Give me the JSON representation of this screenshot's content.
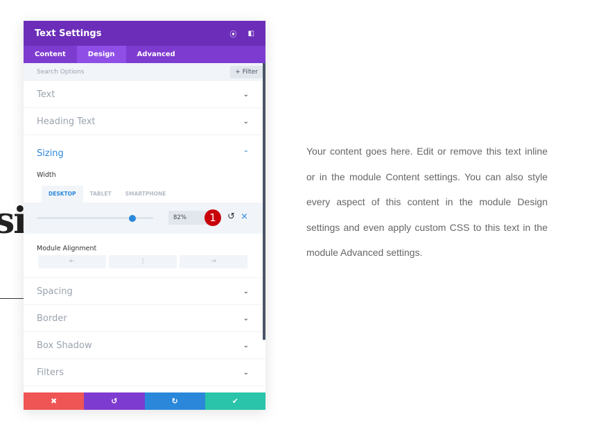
{
  "background": {
    "word": "sig",
    "paragraph": "Your content goes here. Edit or remove this text inline or in the module Content settings. You can also style every aspect of this content in the module Design settings and even apply custom CSS to this text in the module Advanced settings."
  },
  "panel": {
    "title": "Text Settings",
    "tabs": [
      "Content",
      "Design",
      "Advanced"
    ],
    "active_tab": "Design",
    "search_placeholder": "Search Options",
    "filter_label": "+ Filter",
    "sections_top": [
      "Text",
      "Heading Text"
    ],
    "sizing": {
      "title": "Sizing",
      "width_label": "Width",
      "device_tabs": [
        "DESKTOP",
        "TABLET",
        "SMARTPHONE"
      ],
      "active_device": "DESKTOP",
      "width_value": "82%",
      "slider_percent": 82,
      "badge": "1",
      "alignment_label": "Module Alignment"
    },
    "sections_bottom": [
      "Spacing",
      "Border",
      "Box Shadow",
      "Filters"
    ],
    "footer_colors": {
      "cancel": "#ef5555",
      "undo": "#7e3bd0",
      "redo": "#2b87da",
      "save": "#29c4a9"
    }
  }
}
